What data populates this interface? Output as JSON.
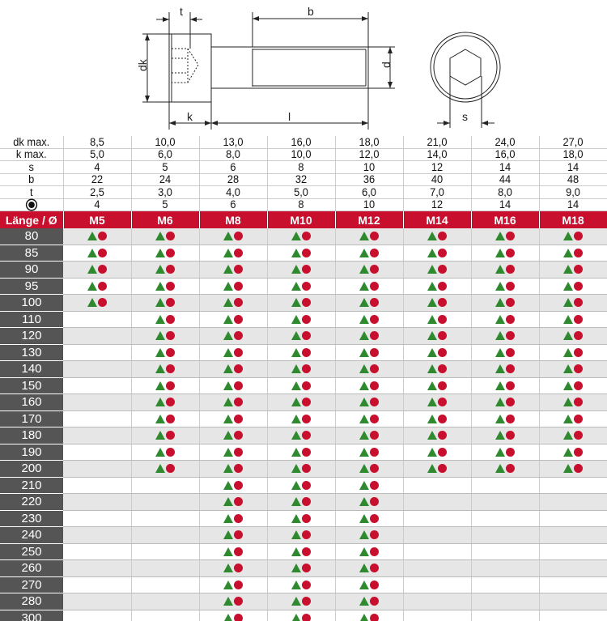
{
  "drawing": {
    "labels": {
      "t": "t",
      "b": "b",
      "dk": "dk",
      "d": "d",
      "k": "k",
      "l": "l",
      "s": "s"
    }
  },
  "specs": [
    {
      "label": "dk max.",
      "values": [
        "8,5",
        "10,0",
        "13,0",
        "16,0",
        "18,0",
        "21,0",
        "24,0",
        "27,0"
      ]
    },
    {
      "label": "k max.",
      "values": [
        "5,0",
        "6,0",
        "8,0",
        "10,0",
        "12,0",
        "14,0",
        "16,0",
        "18,0"
      ]
    },
    {
      "label": "s",
      "values": [
        "4",
        "5",
        "6",
        "8",
        "10",
        "12",
        "14",
        "14"
      ]
    },
    {
      "label": "b",
      "values": [
        "22",
        "24",
        "28",
        "32",
        "36",
        "40",
        "44",
        "48"
      ]
    },
    {
      "label": "t",
      "values": [
        "2,5",
        "3,0",
        "4,0",
        "5,0",
        "6,0",
        "7,0",
        "8,0",
        "9,0"
      ]
    },
    {
      "label": "",
      "icon": "hex-socket-icon",
      "values": [
        "4",
        "5",
        "6",
        "8",
        "10",
        "12",
        "14",
        "14"
      ]
    }
  ],
  "header": {
    "label": "Länge / Ø",
    "sizes": [
      "M5",
      "M6",
      "M8",
      "M10",
      "M12",
      "M14",
      "M16",
      "M18"
    ]
  },
  "colors": {
    "brand_red": "#c8102e",
    "triangle_green": "#2f8a2f",
    "label_bg": "#555555"
  },
  "availability_icons": [
    "green-triangle-icon",
    "red-dot-icon"
  ],
  "rows": [
    {
      "length": "80",
      "available": [
        true,
        true,
        true,
        true,
        true,
        true,
        true,
        true
      ]
    },
    {
      "length": "85",
      "available": [
        true,
        true,
        true,
        true,
        true,
        true,
        true,
        true
      ]
    },
    {
      "length": "90",
      "available": [
        true,
        true,
        true,
        true,
        true,
        true,
        true,
        true
      ]
    },
    {
      "length": "95",
      "available": [
        true,
        true,
        true,
        true,
        true,
        true,
        true,
        true
      ]
    },
    {
      "length": "100",
      "available": [
        true,
        true,
        true,
        true,
        true,
        true,
        true,
        true
      ]
    },
    {
      "length": "110",
      "available": [
        false,
        true,
        true,
        true,
        true,
        true,
        true,
        true
      ]
    },
    {
      "length": "120",
      "available": [
        false,
        true,
        true,
        true,
        true,
        true,
        true,
        true
      ]
    },
    {
      "length": "130",
      "available": [
        false,
        true,
        true,
        true,
        true,
        true,
        true,
        true
      ]
    },
    {
      "length": "140",
      "available": [
        false,
        true,
        true,
        true,
        true,
        true,
        true,
        true
      ]
    },
    {
      "length": "150",
      "available": [
        false,
        true,
        true,
        true,
        true,
        true,
        true,
        true
      ]
    },
    {
      "length": "160",
      "available": [
        false,
        true,
        true,
        true,
        true,
        true,
        true,
        true
      ]
    },
    {
      "length": "170",
      "available": [
        false,
        true,
        true,
        true,
        true,
        true,
        true,
        true
      ]
    },
    {
      "length": "180",
      "available": [
        false,
        true,
        true,
        true,
        true,
        true,
        true,
        true
      ]
    },
    {
      "length": "190",
      "available": [
        false,
        true,
        true,
        true,
        true,
        true,
        true,
        true
      ]
    },
    {
      "length": "200",
      "available": [
        false,
        true,
        true,
        true,
        true,
        true,
        true,
        true
      ]
    },
    {
      "length": "210",
      "available": [
        false,
        false,
        true,
        true,
        true,
        false,
        false,
        false
      ]
    },
    {
      "length": "220",
      "available": [
        false,
        false,
        true,
        true,
        true,
        false,
        false,
        false
      ]
    },
    {
      "length": "230",
      "available": [
        false,
        false,
        true,
        true,
        true,
        false,
        false,
        false
      ]
    },
    {
      "length": "240",
      "available": [
        false,
        false,
        true,
        true,
        true,
        false,
        false,
        false
      ]
    },
    {
      "length": "250",
      "available": [
        false,
        false,
        true,
        true,
        true,
        false,
        false,
        false
      ]
    },
    {
      "length": "260",
      "available": [
        false,
        false,
        true,
        true,
        true,
        false,
        false,
        false
      ]
    },
    {
      "length": "270",
      "available": [
        false,
        false,
        true,
        true,
        true,
        false,
        false,
        false
      ]
    },
    {
      "length": "280",
      "available": [
        false,
        false,
        true,
        true,
        true,
        false,
        false,
        false
      ]
    },
    {
      "length": "300",
      "available": [
        false,
        false,
        true,
        true,
        true,
        false,
        false,
        false
      ]
    }
  ]
}
